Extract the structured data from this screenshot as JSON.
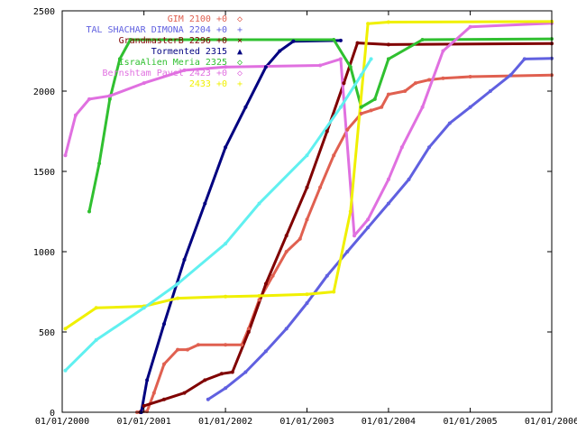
{
  "chart_data": {
    "type": "line",
    "title": "",
    "xlabel": "",
    "ylabel": "",
    "xlim": [
      "2000-01-01",
      "2006-01-01"
    ],
    "ylim": [
      0,
      2500
    ],
    "yticks": [
      0,
      500,
      1000,
      1500,
      2000,
      2500
    ],
    "xticks": [
      "2000-01-01",
      "2001-01-01",
      "2002-01-01",
      "2003-01-01",
      "2004-01-01",
      "2005-01-01",
      "2006-01-01"
    ],
    "xtick_labels": [
      "01/01/2000",
      "01/01/2001",
      "01/01/2002",
      "01/01/2003",
      "01/01/2004",
      "01/01/2005",
      "01/01/2006"
    ],
    "grid": false,
    "legend_position": "top-right",
    "series": [
      {
        "name": "GIM 2100 +0",
        "color": "#e06050",
        "marker": "◇",
        "points": [
          [
            "2000-12-01",
            0
          ],
          [
            "2001-01-15",
            5
          ],
          [
            "2001-02-15",
            120
          ],
          [
            "2001-04-01",
            300
          ],
          [
            "2001-06-01",
            390
          ],
          [
            "2001-07-15",
            390
          ],
          [
            "2001-09-01",
            420
          ],
          [
            "2002-01-01",
            420
          ],
          [
            "2002-03-15",
            420
          ],
          [
            "2002-04-15",
            520
          ],
          [
            "2002-06-01",
            700
          ],
          [
            "2002-08-01",
            850
          ],
          [
            "2002-10-01",
            1000
          ],
          [
            "2002-12-01",
            1080
          ],
          [
            "2003-01-01",
            1200
          ],
          [
            "2003-03-01",
            1400
          ],
          [
            "2003-05-01",
            1600
          ],
          [
            "2003-07-01",
            1760
          ],
          [
            "2003-09-01",
            1860
          ],
          [
            "2003-10-15",
            1880
          ],
          [
            "2003-12-01",
            1900
          ],
          [
            "2004-01-01",
            1980
          ],
          [
            "2004-03-15",
            2000
          ],
          [
            "2004-05-01",
            2050
          ],
          [
            "2004-07-01",
            2070
          ],
          [
            "2004-09-01",
            2080
          ],
          [
            "2005-01-01",
            2090
          ],
          [
            "2006-01-01",
            2100
          ]
        ]
      },
      {
        "name": "TAL SHACHAR DIMONA 2204 +0",
        "color": "#6060e0",
        "marker": "+",
        "points": [
          [
            "2001-10-15",
            80
          ],
          [
            "2002-01-01",
            150
          ],
          [
            "2002-04-01",
            250
          ],
          [
            "2002-07-01",
            380
          ],
          [
            "2002-10-01",
            520
          ],
          [
            "2003-01-01",
            680
          ],
          [
            "2003-04-01",
            850
          ],
          [
            "2003-07-01",
            1000
          ],
          [
            "2003-10-01",
            1150
          ],
          [
            "2004-01-01",
            1300
          ],
          [
            "2004-04-01",
            1450
          ],
          [
            "2004-07-01",
            1650
          ],
          [
            "2004-10-01",
            1800
          ],
          [
            "2005-01-01",
            1900
          ],
          [
            "2005-04-01",
            2000
          ],
          [
            "2005-07-01",
            2100
          ],
          [
            "2005-09-01",
            2200
          ],
          [
            "2006-01-01",
            2204
          ]
        ]
      },
      {
        "name": "GrandmasterB 2296 +0",
        "color": "#800000",
        "marker": "×",
        "points": [
          [
            "2000-12-15",
            0
          ],
          [
            "2001-01-01",
            40
          ],
          [
            "2001-04-01",
            80
          ],
          [
            "2001-07-01",
            120
          ],
          [
            "2001-10-01",
            200
          ],
          [
            "2001-12-15",
            240
          ],
          [
            "2002-02-01",
            250
          ],
          [
            "2002-04-15",
            500
          ],
          [
            "2002-07-01",
            800
          ],
          [
            "2002-10-01",
            1100
          ],
          [
            "2003-01-01",
            1400
          ],
          [
            "2003-04-01",
            1750
          ],
          [
            "2003-06-15",
            2050
          ],
          [
            "2003-08-15",
            2300
          ],
          [
            "2004-01-01",
            2290
          ],
          [
            "2006-01-01",
            2296
          ]
        ]
      },
      {
        "name": "Tormented 2315",
        "color": "#000080",
        "marker": "▲",
        "points": [
          [
            "2000-12-20",
            0
          ],
          [
            "2001-01-15",
            200
          ],
          [
            "2001-04-01",
            550
          ],
          [
            "2001-07-01",
            950
          ],
          [
            "2001-10-01",
            1300
          ],
          [
            "2002-01-01",
            1650
          ],
          [
            "2002-04-01",
            1900
          ],
          [
            "2002-07-01",
            2150
          ],
          [
            "2002-09-01",
            2250
          ],
          [
            "2002-11-01",
            2310
          ],
          [
            "2003-06-01",
            2315
          ]
        ]
      },
      {
        "name": "IsraAlien Meria 2325",
        "color": "#30c030",
        "marker": "◇",
        "points": [
          [
            "2000-05-01",
            1250
          ],
          [
            "2000-06-15",
            1550
          ],
          [
            "2000-08-01",
            1950
          ],
          [
            "2000-09-15",
            2200
          ],
          [
            "2000-11-01",
            2320
          ],
          [
            "2003-05-01",
            2320
          ],
          [
            "2003-07-15",
            2150
          ],
          [
            "2003-09-01",
            1900
          ],
          [
            "2003-11-01",
            1950
          ],
          [
            "2004-01-01",
            2200
          ],
          [
            "2004-06-01",
            2320
          ],
          [
            "2006-01-01",
            2325
          ]
        ]
      },
      {
        "name": "Bernshtam Pavel 2423 +0",
        "color": "#e070e0",
        "marker": "◇",
        "points": [
          [
            "2000-01-15",
            1600
          ],
          [
            "2000-03-01",
            1850
          ],
          [
            "2000-05-01",
            1950
          ],
          [
            "2000-08-01",
            1970
          ],
          [
            "2001-01-01",
            2050
          ],
          [
            "2001-07-01",
            2130
          ],
          [
            "2002-01-01",
            2150
          ],
          [
            "2003-03-01",
            2160
          ],
          [
            "2003-06-01",
            2200
          ],
          [
            "2003-08-01",
            1100
          ],
          [
            "2003-10-01",
            1200
          ],
          [
            "2004-01-01",
            1450
          ],
          [
            "2004-03-01",
            1650
          ],
          [
            "2004-06-01",
            1900
          ],
          [
            "2004-09-01",
            2250
          ],
          [
            "2005-01-01",
            2400
          ],
          [
            "2006-01-01",
            2423
          ]
        ]
      },
      {
        "name": "2433 +0",
        "color": "#f0f000",
        "marker": "+",
        "points": [
          [
            "2000-01-15",
            520
          ],
          [
            "2000-06-01",
            650
          ],
          [
            "2001-01-01",
            660
          ],
          [
            "2001-06-01",
            710
          ],
          [
            "2002-01-01",
            720
          ],
          [
            "2002-06-01",
            725
          ],
          [
            "2003-01-01",
            735
          ],
          [
            "2003-05-01",
            750
          ],
          [
            "2003-07-15",
            1250
          ],
          [
            "2003-10-01",
            2420
          ],
          [
            "2004-01-01",
            2430
          ],
          [
            "2006-01-01",
            2433
          ]
        ]
      },
      {
        "name": "",
        "color": "#60f0f0",
        "marker": "",
        "points": [
          [
            "2000-01-15",
            260
          ],
          [
            "2000-06-01",
            450
          ],
          [
            "2001-01-01",
            650
          ],
          [
            "2001-06-01",
            800
          ],
          [
            "2002-01-01",
            1050
          ],
          [
            "2002-06-01",
            1300
          ],
          [
            "2003-01-01",
            1600
          ],
          [
            "2003-06-01",
            1900
          ],
          [
            "2003-09-01",
            2100
          ],
          [
            "2003-10-15",
            2200
          ]
        ]
      }
    ]
  }
}
